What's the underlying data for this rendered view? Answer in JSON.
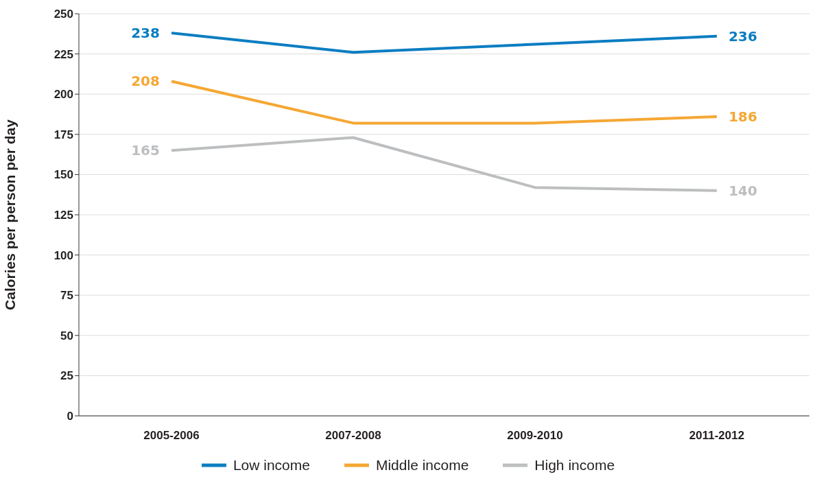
{
  "chart_data": {
    "type": "line",
    "ylabel": "Calories per person per day",
    "categories": [
      "2005-2006",
      "2007-2008",
      "2009-2010",
      "2011-2012"
    ],
    "series": [
      {
        "name": "Low income",
        "color": "#0a7dc2",
        "values": [
          238,
          226,
          231,
          236
        ],
        "value_labels": [
          "238",
          null,
          null,
          "236"
        ]
      },
      {
        "name": "Middle income",
        "color": "#f5a733",
        "values": [
          208,
          182,
          182,
          186
        ],
        "value_labels": [
          "208",
          null,
          null,
          "186"
        ]
      },
      {
        "name": "High income",
        "color": "#bcbec0",
        "values": [
          165,
          173,
          142,
          140
        ],
        "value_labels": [
          "165",
          null,
          null,
          "140"
        ]
      }
    ],
    "ylim": [
      0,
      250
    ],
    "yticks": [
      0,
      25,
      50,
      75,
      100,
      125,
      150,
      175,
      200,
      225,
      250
    ],
    "grid": "y",
    "legend": "bottom",
    "marker": "none",
    "line_style": "solid"
  }
}
